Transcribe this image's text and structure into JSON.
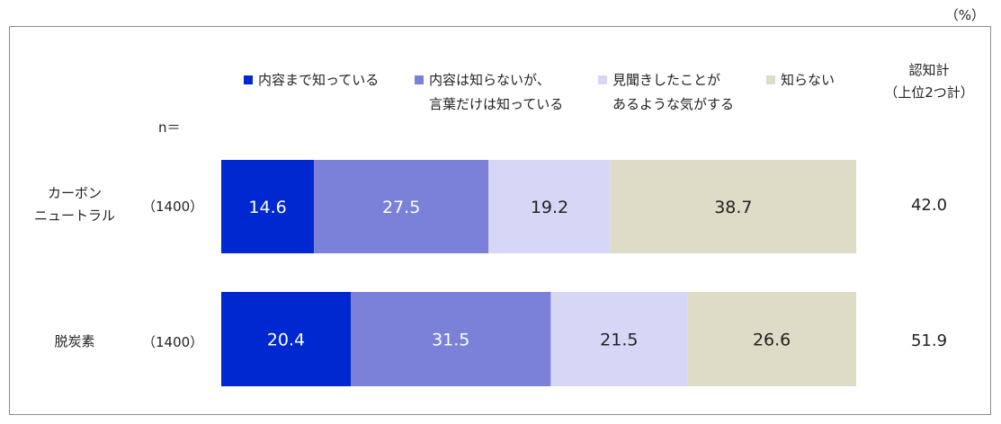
{
  "unit_label": "（%）",
  "n_header": "n＝",
  "total_header": [
    "認知計",
    "（上位2つ計）"
  ],
  "legend": [
    {
      "lines": [
        "内容まで知っている"
      ],
      "color": "#0028d0"
    },
    {
      "lines": [
        "内容は知らないが、",
        "言葉だけは知っている"
      ],
      "color": "#7b80d8"
    },
    {
      "lines": [
        "見聞きしたことが",
        "あるような気がする"
      ],
      "color": "#d6d7f7"
    },
    {
      "lines": [
        "知らない"
      ],
      "color": "#dedbc6"
    }
  ],
  "chart_data": {
    "type": "bar",
    "orientation": "horizontal",
    "stacked": true,
    "categories": [
      {
        "lines": [
          "カーボン",
          "ニュートラル"
        ],
        "n": "（1400）",
        "total": "42.0"
      },
      {
        "lines": [
          "脱炭素"
        ],
        "n": "（1400）",
        "total": "51.9"
      }
    ],
    "series": [
      {
        "name": "内容まで知っている",
        "values": [
          14.6,
          20.4
        ],
        "labels": [
          "14.6",
          "20.4"
        ],
        "color": "#0028d0",
        "label_color": "#ffffff"
      },
      {
        "name": "内容は知らないが、言葉だけは知っている",
        "values": [
          27.5,
          31.5
        ],
        "labels": [
          "27.5",
          "31.5"
        ],
        "color": "#7b80d8",
        "label_color": "#ffffff"
      },
      {
        "name": "見聞きしたことがあるような気がする",
        "values": [
          19.2,
          21.5
        ],
        "labels": [
          "19.2",
          "21.5"
        ],
        "color": "#d6d7f7",
        "label_color": "#222222"
      },
      {
        "name": "知らない",
        "values": [
          38.7,
          26.6
        ],
        "labels": [
          "38.7",
          "26.6"
        ],
        "color": "#dedbc6",
        "label_color": "#222222"
      }
    ],
    "xlim": [
      0,
      100
    ],
    "grid": false,
    "legend_position": "top"
  }
}
